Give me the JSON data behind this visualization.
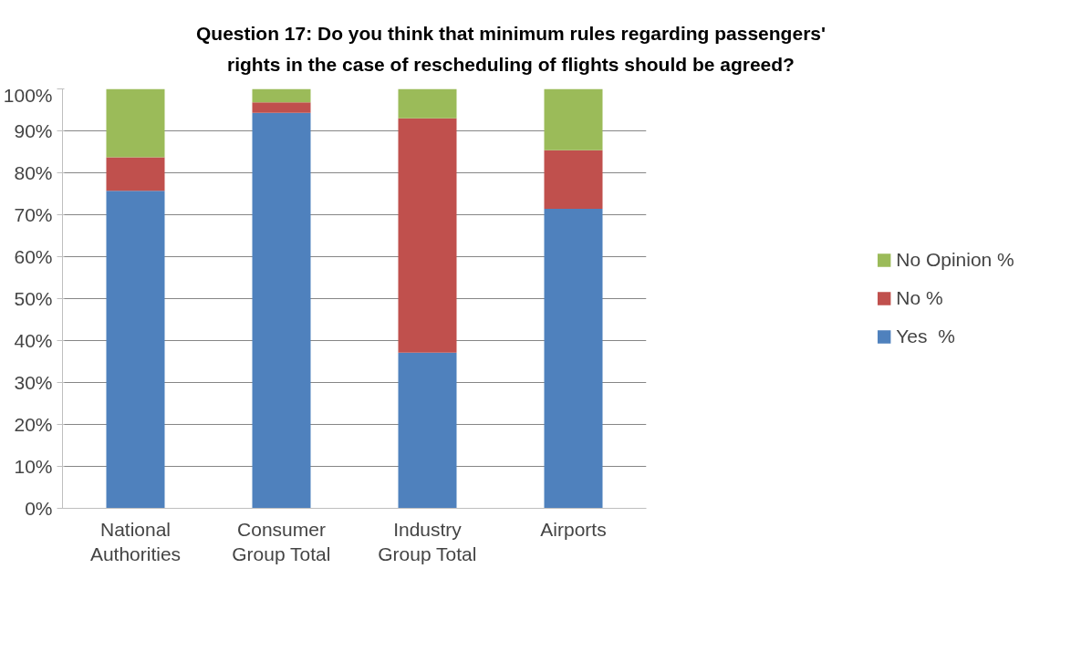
{
  "chart_data": {
    "type": "bar",
    "stacked": true,
    "title": "Question 17: Do you think that minimum rules regarding passengers' rights in the case of rescheduling of flights should be agreed?",
    "categories": [
      "National Authorities",
      "Consumer Group Total",
      "Industry Group Total",
      "Airports"
    ],
    "series": [
      {
        "name": "Yes  %",
        "color": "#4f81bd",
        "values": [
          75.7,
          94.3,
          37.1,
          71.4
        ]
      },
      {
        "name": "No %",
        "color": "#c0504d",
        "values": [
          8.0,
          2.5,
          55.9,
          14.0
        ]
      },
      {
        "name": "No Opinion %",
        "color": "#9bbb59",
        "values": [
          16.3,
          3.2,
          7.0,
          14.6
        ]
      }
    ],
    "ylim": [
      0,
      100
    ],
    "yticks": [
      {
        "value": 0,
        "label": "0%"
      },
      {
        "value": 10,
        "label": "10%"
      },
      {
        "value": 20,
        "label": "20%"
      },
      {
        "value": 30,
        "label": "30%"
      },
      {
        "value": 40,
        "label": "40%"
      },
      {
        "value": 50,
        "label": "50%"
      },
      {
        "value": 60,
        "label": "60%"
      },
      {
        "value": 70,
        "label": "70%"
      },
      {
        "value": 80,
        "label": "80%"
      },
      {
        "value": 90,
        "label": "90%"
      },
      {
        "value": 100,
        "label": "100%"
      }
    ],
    "grid": "y",
    "legend": "right"
  }
}
